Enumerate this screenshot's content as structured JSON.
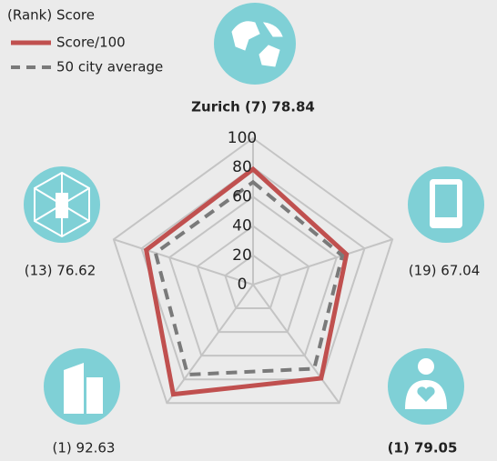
{
  "chart_data": {
    "type": "radar",
    "legend_title": "(Rank) Score",
    "categories": [
      "Zurich (7) 78.84",
      "(19) 67.04",
      "(1) 79.05",
      "(1) 92.63",
      "(13) 76.62"
    ],
    "series": [
      {
        "name": "Score/100",
        "color": "#c0504f",
        "values": [
          78.84,
          67.04,
          79.05,
          92.63,
          76.62
        ]
      },
      {
        "name": "50 city average",
        "color": "#7a7a7a",
        "dashed": true,
        "values": [
          70,
          64,
          71,
          76,
          70
        ]
      }
    ],
    "ylim": [
      0,
      100
    ],
    "yticks": [
      0,
      20,
      40,
      60,
      80,
      100
    ],
    "grid": true
  }
}
